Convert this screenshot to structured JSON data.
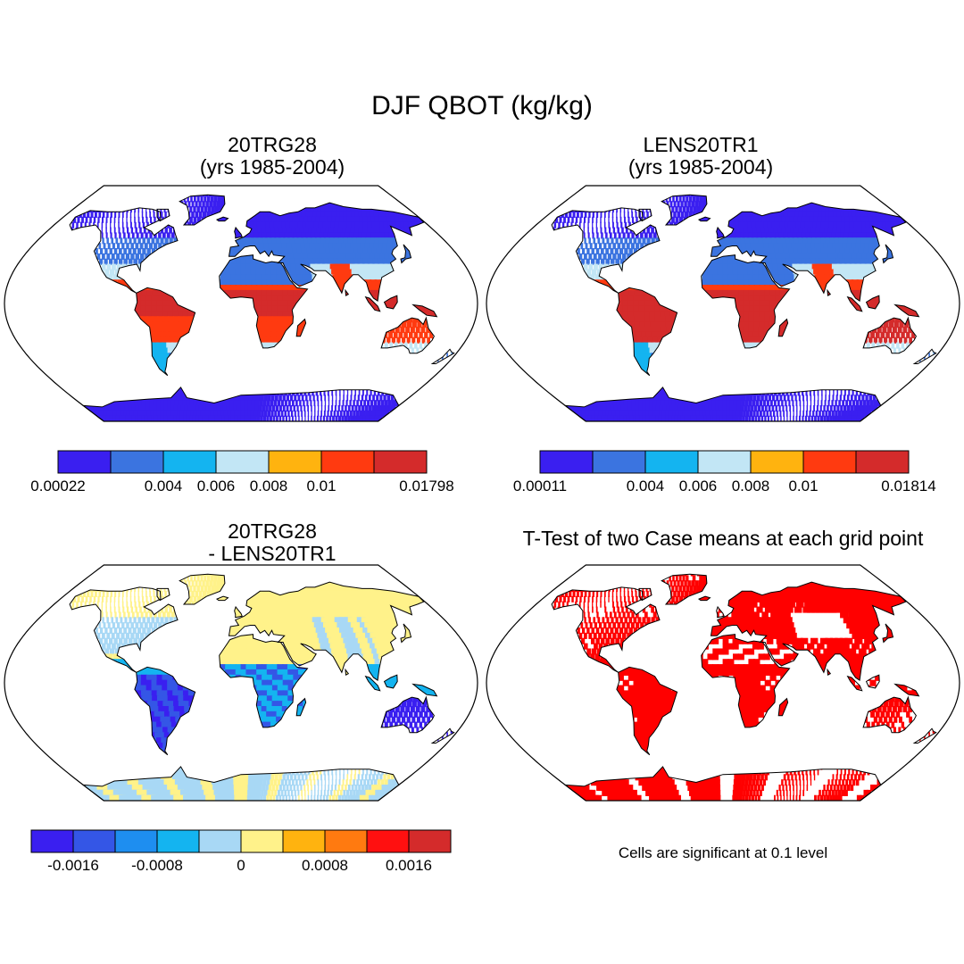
{
  "figure": {
    "title": "DJF QBOT (kg/kg)",
    "note": "Cells are significant at 0.1 level"
  },
  "chart_data": [
    {
      "type": "heatmap",
      "projection": "world map (Robinson-like)",
      "title_line1": "20TRG28",
      "title_line2": "(yrs 1985-2004)",
      "colorbar": {
        "colors": [
          "#3a1ff0",
          "#3b74e0",
          "#14b4f0",
          "#c2e6f5",
          "#ffb30f",
          "#ff3a10",
          "#d42b2b"
        ],
        "tick_labels": [
          "0.00022",
          "0.004",
          "0.006",
          "0.008",
          "0.01",
          "0.01798"
        ],
        "min": 0.00022,
        "max": 0.01798
      }
    },
    {
      "type": "heatmap",
      "projection": "world map (Robinson-like)",
      "title_line1": "LENS20TR1",
      "title_line2": "(yrs 1985-2004)",
      "colorbar": {
        "colors": [
          "#3a1ff0",
          "#3b74e0",
          "#14b4f0",
          "#c2e6f5",
          "#ffb30f",
          "#ff3a10",
          "#d42b2b"
        ],
        "tick_labels": [
          "0.00011",
          "0.004",
          "0.006",
          "0.008",
          "0.01",
          "0.01814"
        ],
        "min": 0.00011,
        "max": 0.01814
      }
    },
    {
      "type": "heatmap",
      "projection": "world map (Robinson-like)",
      "title_line1": "20TRG28",
      "title_line2": "- LENS20TR1",
      "colorbar": {
        "colors": [
          "#3a1ff0",
          "#3456e6",
          "#1e8ef0",
          "#14b4f0",
          "#a8d8f5",
          "#fff28a",
          "#ffb30f",
          "#ff7a10",
          "#ff1010",
          "#d42b2b"
        ],
        "tick_labels": [
          "-0.0016",
          "-0.0008",
          "0",
          "0.0008",
          "0.0016"
        ],
        "tick_values": [
          -0.0016,
          -0.0008,
          0,
          0.0008,
          0.0016
        ]
      }
    },
    {
      "type": "heatmap",
      "projection": "world map (Robinson-like)",
      "title_line1": "T-Test of two Case means at each grid point",
      "significant_color": "#ff0000"
    }
  ]
}
